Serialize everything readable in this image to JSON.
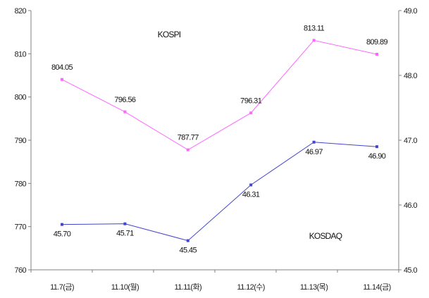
{
  "chart_data": {
    "type": "line",
    "categories": [
      "11.7(금)",
      "11.10(월)",
      "11.11(화)",
      "11.12(수)",
      "11.13(목)",
      "11.14(금)"
    ],
    "left_axis": {
      "ylim": [
        760,
        820
      ],
      "ticks": [
        "760",
        "770",
        "780",
        "790",
        "800",
        "810",
        "820"
      ]
    },
    "right_axis": {
      "ylim": [
        45.0,
        49.0
      ],
      "ticks": [
        "45.0",
        "46.0",
        "47.0",
        "48.0",
        "49.0"
      ]
    },
    "series": [
      {
        "name": "KOSPI",
        "axis": "left",
        "color": "#ff66ff",
        "values": [
          804.05,
          796.56,
          787.77,
          796.31,
          813.11,
          809.89
        ],
        "labels": [
          "804.05",
          "796.56",
          "787.77",
          "796.31",
          "813.11",
          "809.89"
        ]
      },
      {
        "name": "KOSDAQ",
        "axis": "right",
        "color": "#4444cc",
        "values": [
          45.7,
          45.71,
          45.45,
          46.31,
          46.97,
          46.9
        ],
        "labels": [
          "45.70",
          "45.71",
          "45.45",
          "46.31",
          "46.97",
          "46.90"
        ]
      }
    ],
    "grid": false,
    "legend": "none"
  }
}
